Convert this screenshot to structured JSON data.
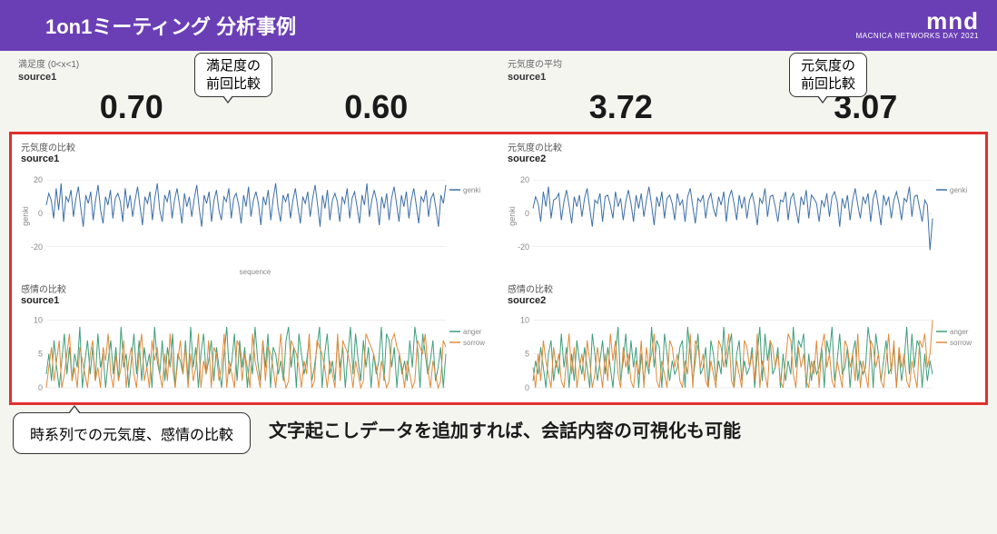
{
  "header": {
    "title": "1on1ミーティング 分析事例",
    "logo_main": "mnd",
    "logo_sub": "MACNICA NETWORKS DAY 2021"
  },
  "metrics": {
    "left": {
      "title": "満足度 (0<x<1)",
      "source": "source1",
      "callout_line1": "満足度の",
      "callout_line2": "前回比較",
      "value1": "0.70",
      "value2": "0.60"
    },
    "right": {
      "title": "元気度の平均",
      "source": "source1",
      "callout_line1": "元気度の",
      "callout_line2": "前回比較",
      "value1": "3.72",
      "value2": "3.07"
    }
  },
  "charts": {
    "top_left": {
      "title": "元気度の比較",
      "source": "source1",
      "xlabel": "sequence",
      "type": "line",
      "ylim": [
        -25,
        25
      ],
      "yticks": [
        -20,
        0,
        20
      ],
      "ylabel": "genki",
      "line_color": "#3e6fa8",
      "background": "#ffffff",
      "grid_color": "#e0e0e0",
      "legend": [
        "genki"
      ],
      "series": [
        5,
        12,
        8,
        -3,
        15,
        2,
        18,
        -5,
        10,
        7,
        14,
        -2,
        9,
        16,
        3,
        -8,
        11,
        6,
        13,
        -4,
        8,
        17,
        2,
        -6,
        10,
        5,
        14,
        -3,
        9,
        12,
        7,
        -5,
        15,
        3,
        11,
        -2,
        8,
        16,
        4,
        -7,
        10,
        6,
        13,
        -4,
        9,
        18,
        2,
        -5,
        11,
        7,
        14,
        -3,
        8,
        15,
        5,
        -6,
        12,
        4,
        10,
        -2,
        9,
        17,
        3,
        -8,
        11,
        6,
        13,
        -5,
        8,
        14,
        2,
        -4,
        10,
        7,
        15,
        -3,
        9,
        12,
        5,
        -6,
        11,
        4,
        16,
        -2,
        8,
        13,
        6,
        -7,
        10,
        5,
        14,
        -4,
        9,
        18,
        3,
        -5,
        11,
        7,
        12,
        -3,
        8,
        15,
        4,
        -6,
        10,
        6,
        13,
        -2,
        9,
        17,
        5,
        -8,
        11,
        3,
        14,
        -4,
        8,
        12,
        7,
        -5,
        10,
        6,
        15,
        -3,
        9,
        13,
        4,
        -6,
        11,
        5,
        18,
        -2,
        8,
        14,
        7,
        -7,
        10,
        3,
        12,
        -4,
        9,
        16,
        6,
        -5,
        11,
        4,
        13,
        -3,
        8,
        15,
        5,
        -6,
        10,
        7,
        14,
        -2,
        9,
        12,
        3,
        -8,
        11,
        6,
        17
      ]
    },
    "top_right": {
      "title": "元気度の比較",
      "source": "source2",
      "xlabel": "",
      "type": "line",
      "ylim": [
        -25,
        25
      ],
      "yticks": [
        -20,
        0,
        20
      ],
      "ylabel": "genki",
      "line_color": "#3e6fa8",
      "background": "#ffffff",
      "grid_color": "#e0e0e0",
      "legend": [
        "genki"
      ],
      "series": [
        3,
        10,
        6,
        -5,
        13,
        4,
        16,
        -3,
        8,
        9,
        12,
        -4,
        7,
        14,
        5,
        -6,
        10,
        4,
        11,
        -2,
        9,
        15,
        3,
        -8,
        8,
        6,
        12,
        -5,
        10,
        11,
        5,
        -3,
        13,
        4,
        9,
        -4,
        7,
        14,
        6,
        -5,
        11,
        3,
        12,
        -2,
        8,
        16,
        5,
        -7,
        10,
        4,
        13,
        -3,
        9,
        11,
        6,
        -4,
        12,
        5,
        8,
        -5,
        10,
        15,
        4,
        -6,
        9,
        7,
        11,
        -3,
        8,
        12,
        3,
        -2,
        10,
        5,
        13,
        -5,
        9,
        14,
        6,
        -4,
        11,
        3,
        10,
        -3,
        8,
        12,
        5,
        -7,
        9,
        6,
        15,
        -2,
        10,
        11,
        4,
        -5,
        8,
        7,
        13,
        -4,
        9,
        12,
        3,
        -6,
        10,
        5,
        14,
        -3,
        11,
        9,
        6,
        -5,
        8,
        4,
        12,
        -2,
        10,
        13,
        7,
        -8,
        9,
        3,
        11,
        -4,
        8,
        15,
        5,
        -3,
        10,
        6,
        12,
        -5,
        9,
        14,
        4,
        -7,
        11,
        5,
        10,
        -3,
        8,
        13,
        6,
        -4,
        9,
        7,
        16,
        -2,
        10,
        11,
        3,
        -5,
        8,
        5,
        -22,
        -3
      ]
    },
    "bottom_left": {
      "title": "感情の比較",
      "source": "source1",
      "xlabel": "",
      "type": "line",
      "ylim": [
        0,
        11
      ],
      "yticks": [
        0,
        5,
        10
      ],
      "ylabel": "",
      "colors": [
        "#3e9e7a",
        "#e08a3a"
      ],
      "background": "#ffffff",
      "legend": [
        "anger",
        "sorrow"
      ],
      "series_a": [
        2,
        5,
        1,
        7,
        3,
        0,
        4,
        8,
        2,
        6,
        1,
        5,
        3,
        9,
        0,
        4,
        7,
        2,
        6,
        1,
        8,
        3,
        5,
        0,
        4,
        7,
        2,
        6,
        1,
        9,
        3,
        5,
        0,
        4,
        8,
        2,
        7,
        1,
        6,
        3,
        5,
        0,
        9,
        4,
        2,
        7,
        1,
        6,
        3,
        8,
        0,
        5,
        4,
        2,
        7,
        1,
        9,
        3,
        6,
        0,
        5,
        8,
        2,
        4,
        7,
        1,
        6,
        3,
        0,
        5,
        9,
        2,
        4,
        8,
        1,
        7,
        3,
        6,
        0,
        5,
        2,
        9,
        4,
        1,
        7,
        3,
        8,
        0,
        6,
        5,
        2,
        4,
        1,
        7,
        9,
        3,
        6,
        0,
        8,
        5,
        2,
        4,
        7,
        1,
        3,
        6,
        9,
        0,
        5,
        8,
        2,
        4,
        1,
        7,
        3,
        6,
        0,
        5,
        9,
        2,
        8,
        4,
        1,
        7,
        3,
        6,
        0,
        5,
        2,
        4,
        9,
        1,
        8,
        7,
        3,
        6,
        0,
        5,
        2,
        4,
        1,
        7,
        3,
        9,
        6,
        0,
        8,
        5,
        2,
        4,
        7,
        1,
        3,
        6,
        0,
        5
      ],
      "series_b": [
        0,
        3,
        6,
        1,
        4,
        7,
        0,
        2,
        5,
        8,
        1,
        3,
        0,
        6,
        4,
        2,
        0,
        5,
        7,
        1,
        3,
        0,
        6,
        4,
        8,
        2,
        0,
        5,
        1,
        3,
        7,
        0,
        4,
        6,
        2,
        0,
        5,
        8,
        1,
        3,
        0,
        7,
        4,
        6,
        2,
        0,
        5,
        1,
        8,
        3,
        0,
        4,
        7,
        2,
        6,
        0,
        5,
        1,
        3,
        8,
        0,
        4,
        2,
        7,
        0,
        6,
        5,
        1,
        3,
        8,
        0,
        4,
        2,
        0,
        7,
        6,
        1,
        5,
        3,
        0,
        8,
        4,
        2,
        0,
        7,
        1,
        6,
        5,
        3,
        0,
        4,
        8,
        2,
        0,
        1,
        7,
        6,
        5,
        3,
        0,
        4,
        2,
        8,
        0,
        1,
        7,
        6,
        5,
        3,
        0,
        4,
        2,
        0,
        8,
        1,
        7,
        6,
        5,
        3,
        0,
        4,
        2,
        0,
        1,
        8,
        7,
        6,
        5,
        3,
        0,
        4,
        2,
        0,
        1,
        7,
        8,
        6,
        5,
        3,
        0,
        4,
        2,
        0,
        1,
        7,
        6,
        5,
        8,
        3,
        0,
        4,
        2,
        0,
        1,
        7,
        6
      ]
    },
    "bottom_right": {
      "title": "感情の比較",
      "source": "source2",
      "xlabel": "",
      "type": "line",
      "ylim": [
        0,
        11
      ],
      "yticks": [
        0,
        5,
        10
      ],
      "ylabel": "",
      "colors": [
        "#3e9e7a",
        "#e08a3a"
      ],
      "background": "#ffffff",
      "legend": [
        "anger",
        "sorrow"
      ],
      "series_a": [
        1,
        4,
        2,
        6,
        3,
        0,
        5,
        7,
        1,
        4,
        2,
        8,
        3,
        6,
        0,
        5,
        1,
        7,
        4,
        2,
        6,
        3,
        0,
        8,
        5,
        1,
        4,
        7,
        2,
        6,
        3,
        0,
        5,
        9,
        1,
        4,
        8,
        2,
        7,
        3,
        6,
        0,
        5,
        1,
        4,
        2,
        9,
        3,
        7,
        6,
        0,
        8,
        5,
        1,
        4,
        2,
        3,
        6,
        7,
        0,
        9,
        5,
        1,
        4,
        8,
        2,
        3,
        6,
        0,
        7,
        5,
        1,
        4,
        2,
        9,
        3,
        6,
        8,
        0,
        5,
        7,
        1,
        4,
        2,
        3,
        6,
        0,
        5,
        9,
        1,
        8,
        4,
        7,
        2,
        3,
        6,
        0,
        5,
        1,
        4,
        2,
        9,
        3,
        7,
        6,
        8,
        0,
        5,
        1,
        4,
        2,
        3,
        6,
        0,
        7,
        5,
        9,
        1,
        4,
        8,
        2,
        3,
        6,
        0,
        5,
        7,
        1,
        4,
        2,
        3,
        9,
        6,
        0,
        8,
        5,
        1,
        4,
        7,
        2,
        3,
        6,
        0,
        5,
        1,
        4,
        9,
        2,
        8,
        3,
        7,
        6,
        0,
        5,
        1,
        4,
        2
      ],
      "series_b": [
        3,
        0,
        5,
        1,
        7,
        4,
        2,
        0,
        6,
        3,
        5,
        1,
        0,
        4,
        8,
        2,
        6,
        0,
        3,
        5,
        1,
        7,
        4,
        0,
        2,
        6,
        3,
        0,
        5,
        1,
        8,
        4,
        7,
        2,
        0,
        6,
        3,
        5,
        1,
        0,
        4,
        2,
        7,
        0,
        6,
        3,
        5,
        8,
        1,
        0,
        4,
        2,
        0,
        7,
        6,
        3,
        5,
        1,
        0,
        4,
        2,
        8,
        0,
        7,
        6,
        3,
        5,
        1,
        0,
        4,
        2,
        0,
        7,
        6,
        3,
        5,
        8,
        1,
        0,
        4,
        2,
        0,
        7,
        6,
        3,
        5,
        1,
        8,
        0,
        4,
        2,
        0,
        7,
        6,
        3,
        5,
        1,
        0,
        4,
        8,
        7,
        2,
        0,
        6,
        3,
        5,
        1,
        0,
        4,
        2,
        7,
        0,
        6,
        8,
        3,
        5,
        1,
        0,
        4,
        2,
        0,
        7,
        6,
        3,
        5,
        1,
        8,
        0,
        4,
        2,
        0,
        7,
        6,
        3,
        5,
        1,
        0,
        4,
        8,
        2,
        7,
        0,
        6,
        3,
        5,
        1,
        0,
        4,
        2,
        0,
        7,
        6,
        8,
        3,
        5,
        10
      ]
    }
  },
  "footer": {
    "callout": "時系列での元気度、感情の比較",
    "note": "文字起こしデータを追加すれば、会話内容の可視化も可能"
  }
}
